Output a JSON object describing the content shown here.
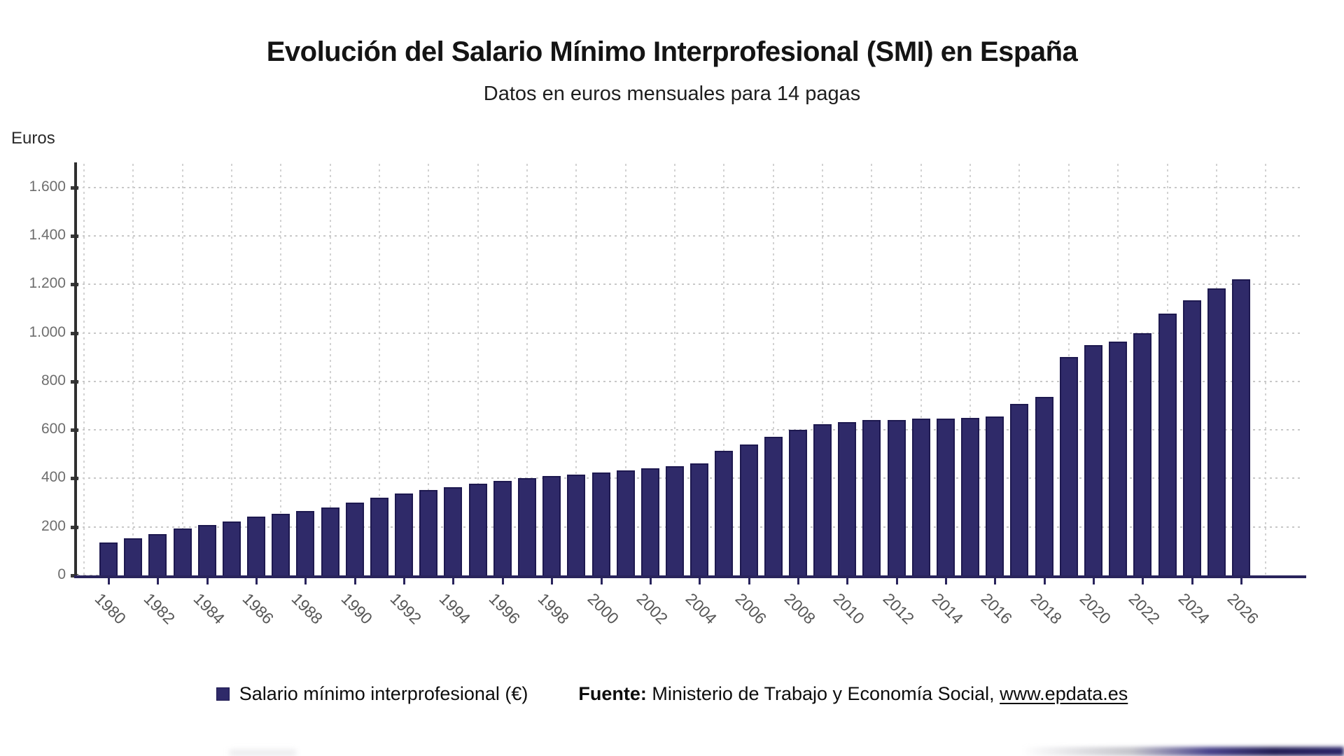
{
  "chart_data": {
    "type": "bar",
    "title": "Evolución del Salario Mínimo Interprofesional (SMI) en España",
    "subtitle": "Datos en euros mensuales para 14 pagas",
    "ylabel": "Euros",
    "xlabel": "",
    "ylim": [
      0,
      1700
    ],
    "grid": true,
    "legend_position": "bottom",
    "legend_label": "Salario mínimo interprofesional (€)",
    "y_ticks": {
      "values": [
        0,
        200,
        400,
        600,
        800,
        1000,
        1200,
        1400,
        1600
      ],
      "labels": [
        "0",
        "200",
        "400",
        "600",
        "800",
        "1.000",
        "1.200",
        "1.400",
        "1.600"
      ]
    },
    "x_tick_labels": [
      "1980",
      "1982",
      "1984",
      "1986",
      "1988",
      "1990",
      "1992",
      "1994",
      "1996",
      "1998",
      "2000",
      "2002",
      "2004",
      "2006",
      "2008",
      "2010",
      "2012",
      "2014",
      "2016",
      "2018",
      "2020",
      "2022",
      "2024",
      "2026"
    ],
    "categories": [
      "1980",
      "1981",
      "1982",
      "1983",
      "1984",
      "1985",
      "1986",
      "1987",
      "1988",
      "1989",
      "1990",
      "1991",
      "1992",
      "1993",
      "1994",
      "1995",
      "1996",
      "1997",
      "1998",
      "1999",
      "2000",
      "2001",
      "2002",
      "2003",
      "2004",
      "2005",
      "2006",
      "2007",
      "2008",
      "2009",
      "2010",
      "2011",
      "2012",
      "2013",
      "2014",
      "2015",
      "2016",
      "2017",
      "2018",
      "2019",
      "2020",
      "2021",
      "2022",
      "2023",
      "2024",
      "2025",
      "2026"
    ],
    "values": [
      135.4,
      154.0,
      170.9,
      193.3,
      208.8,
      223.4,
      241.3,
      253.3,
      264.7,
      280.6,
      300.6,
      320.0,
      338.3,
      351.8,
      364.0,
      376.8,
      390.2,
      400.5,
      408.9,
      416.3,
      424.8,
      433.5,
      442.2,
      451.2,
      460.5,
      513.0,
      540.9,
      570.6,
      600.0,
      624.0,
      633.3,
      641.4,
      641.4,
      645.3,
      645.3,
      648.6,
      655.2,
      707.7,
      735.9,
      900.0,
      950.0,
      965.0,
      1000.0,
      1080.0,
      1134.0,
      1184.0,
      1221.0
    ],
    "colors": {
      "bar_fill": "#2f2a69",
      "bar_border": "#1e1950",
      "x_axis": "#29245c",
      "y_axis": "#2f2f2f"
    }
  },
  "source": {
    "prefix": "Fuente:",
    "text": "Ministerio de Trabajo y Economía Social,",
    "link": "www.epdata.es"
  }
}
